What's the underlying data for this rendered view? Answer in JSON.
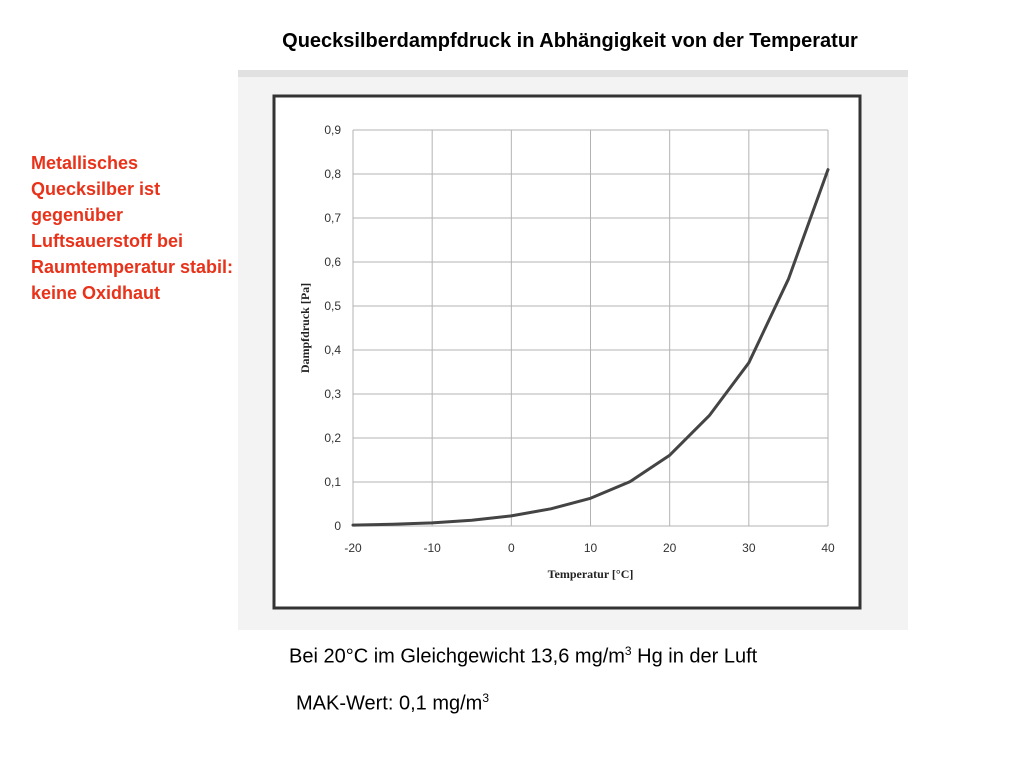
{
  "slide": {
    "title": "Quecksilberdampfdruck in Abhängigkeit von der Temperatur",
    "side_note": "Metallisches Quecksilber ist gegenüber Luftsauerstoff bei Raumtemperatur stabil: keine Oxidhaut",
    "footnotes": [
      {
        "text": "Bei 20°C im Gleichgewicht 13,6 mg/m",
        "sup": "3",
        "tail": " Hg in der Luft"
      },
      {
        "text": "MAK-Wert: 0,1 mg/m",
        "sup": "3",
        "tail": ""
      }
    ],
    "colors": {
      "side_note": "#e8321a",
      "curve": "#444444",
      "grid": "#b3b3b3",
      "frame": "#333333"
    }
  },
  "chart_data": {
    "type": "line",
    "title": "",
    "xlabel": "Temperatur [°C]",
    "ylabel": "Dampfdruck [Pa]",
    "xlim": [
      -20,
      40
    ],
    "ylim": [
      0,
      0.9
    ],
    "x_ticks": [
      -20,
      -10,
      0,
      10,
      20,
      30,
      40
    ],
    "x_tick_labels": [
      "-20",
      "-10",
      "0",
      "10",
      "20",
      "30",
      "40"
    ],
    "y_ticks": [
      0,
      0.1,
      0.2,
      0.3,
      0.4,
      0.5,
      0.6,
      0.7,
      0.8,
      0.9
    ],
    "y_tick_labels": [
      "0",
      "0,1",
      "0,2",
      "0,3",
      "0,4",
      "0,5",
      "0,6",
      "0,7",
      "0,8",
      "0,9"
    ],
    "grid": true,
    "legend": "none",
    "series": [
      {
        "x": [
          -20,
          -15,
          -10,
          -5,
          0,
          5,
          10,
          15,
          20,
          25,
          30,
          35,
          40
        ],
        "y": [
          0.002,
          0.004,
          0.007,
          0.013,
          0.023,
          0.039,
          0.063,
          0.101,
          0.161,
          0.251,
          0.371,
          0.561,
          0.81
        ]
      }
    ]
  }
}
